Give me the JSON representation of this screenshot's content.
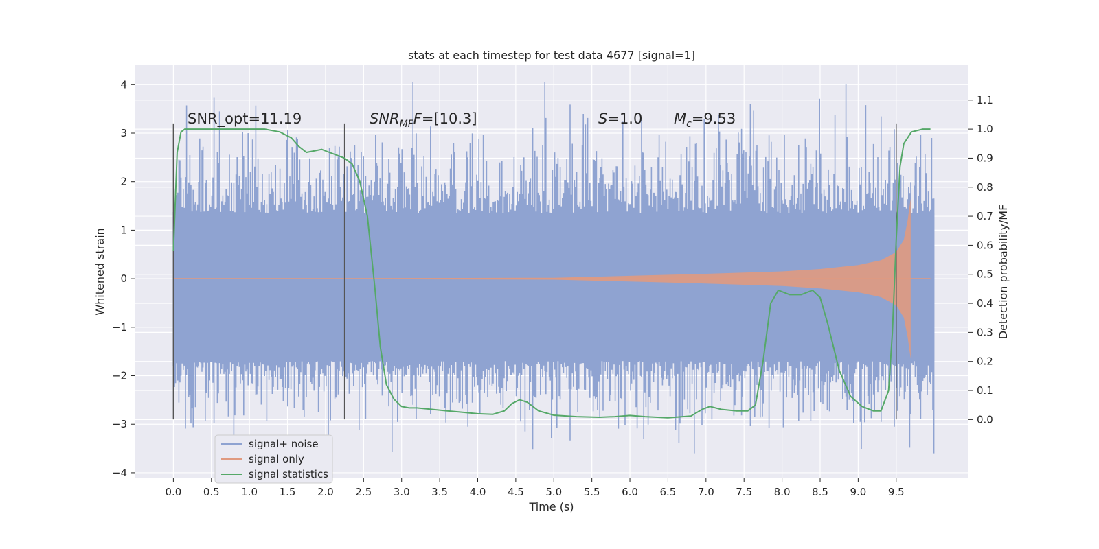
{
  "chart_data": {
    "type": "line",
    "title": "stats at each timestep for test data 4677 [signal=1]",
    "xlabel": "Time (s)",
    "ylabel_left": "Whitened strain",
    "ylabel_right": "Detection probability/MF",
    "xlim": [
      -0.5,
      10.45
    ],
    "ylim_left": [
      -4.1,
      4.4
    ],
    "ylim_right": [
      -0.2,
      1.22
    ],
    "x_ticks": [
      "0.0",
      "0.5",
      "1.0",
      "1.5",
      "2.0",
      "2.5",
      "3.0",
      "3.5",
      "4.0",
      "4.5",
      "5.0",
      "5.5",
      "6.0",
      "6.5",
      "7.0",
      "7.5",
      "8.0",
      "8.5",
      "9.0",
      "9.5"
    ],
    "y_ticks_left": [
      "4",
      "3",
      "2",
      "1",
      "0",
      "−1",
      "−2",
      "−3",
      "−4"
    ],
    "y_ticks_right": [
      "1.1",
      "1.0",
      "0.9",
      "0.8",
      "0.7",
      "0.6",
      "0.5",
      "0.4",
      "0.3",
      "0.2",
      "0.1",
      "0.0"
    ],
    "grid": true,
    "legend_position": "lower-left",
    "annotations": {
      "snr_opt": "SNR_opt=11.19",
      "snr_mf": "SNR",
      "snr_mf_sub": "MF",
      "snr_mf_val": "=[10.3]",
      "s_label": "S",
      "s_val": "=1.0",
      "mc_label": "M",
      "mc_sub": "c",
      "mc_val": "=9.53"
    },
    "vlines": [
      0.0,
      2.25,
      9.5
    ],
    "series": [
      {
        "name": "signal+ noise",
        "color": "#8fa3d1",
        "axis": "left",
        "x_range": [
          0.0,
          9.5
        ],
        "band_low": -1.7,
        "band_high": 1.35,
        "min": -3.6,
        "max": 4.05
      },
      {
        "name": "signal only",
        "color": "#e09a80",
        "axis": "left",
        "envelope_x": [
          0.0,
          5.0,
          6.0,
          7.0,
          8.0,
          8.5,
          9.0,
          9.3,
          9.5,
          9.6,
          9.65,
          9.69
        ],
        "envelope_amp": [
          0.0,
          0.02,
          0.06,
          0.1,
          0.15,
          0.2,
          0.28,
          0.38,
          0.55,
          0.8,
          1.2,
          1.65
        ],
        "zero_until": 9.95
      },
      {
        "name": "signal statistics",
        "color": "#55a868",
        "axis": "right",
        "x": [
          0.0,
          0.05,
          0.1,
          0.15,
          0.25,
          0.4,
          0.6,
          0.8,
          1.0,
          1.2,
          1.4,
          1.55,
          1.65,
          1.75,
          1.85,
          1.95,
          2.05,
          2.15,
          2.25,
          2.35,
          2.45,
          2.55,
          2.65,
          2.72,
          2.8,
          2.9,
          3.0,
          3.1,
          3.2,
          3.4,
          3.6,
          3.8,
          4.0,
          4.2,
          4.35,
          4.45,
          4.55,
          4.65,
          4.8,
          5.0,
          5.3,
          5.6,
          5.8,
          6.0,
          6.2,
          6.5,
          6.8,
          6.95,
          7.05,
          7.2,
          7.4,
          7.55,
          7.65,
          7.75,
          7.85,
          7.95,
          8.1,
          8.25,
          8.4,
          8.5,
          8.6,
          8.75,
          8.9,
          9.05,
          9.2,
          9.3,
          9.4,
          9.45,
          9.5,
          9.55,
          9.6,
          9.7,
          9.85,
          9.95
        ],
        "y": [
          0.58,
          0.92,
          0.99,
          1.0,
          1.0,
          1.0,
          1.0,
          1.0,
          1.0,
          1.0,
          0.99,
          0.97,
          0.94,
          0.92,
          0.925,
          0.93,
          0.92,
          0.91,
          0.9,
          0.88,
          0.82,
          0.7,
          0.45,
          0.25,
          0.12,
          0.07,
          0.045,
          0.04,
          0.04,
          0.035,
          0.03,
          0.025,
          0.02,
          0.018,
          0.03,
          0.055,
          0.068,
          0.06,
          0.03,
          0.015,
          0.01,
          0.008,
          0.01,
          0.014,
          0.01,
          0.006,
          0.012,
          0.035,
          0.045,
          0.035,
          0.03,
          0.03,
          0.05,
          0.2,
          0.4,
          0.445,
          0.43,
          0.43,
          0.445,
          0.42,
          0.33,
          0.17,
          0.08,
          0.045,
          0.03,
          0.03,
          0.1,
          0.3,
          0.62,
          0.87,
          0.95,
          0.99,
          1.0,
          1.0
        ]
      }
    ]
  }
}
